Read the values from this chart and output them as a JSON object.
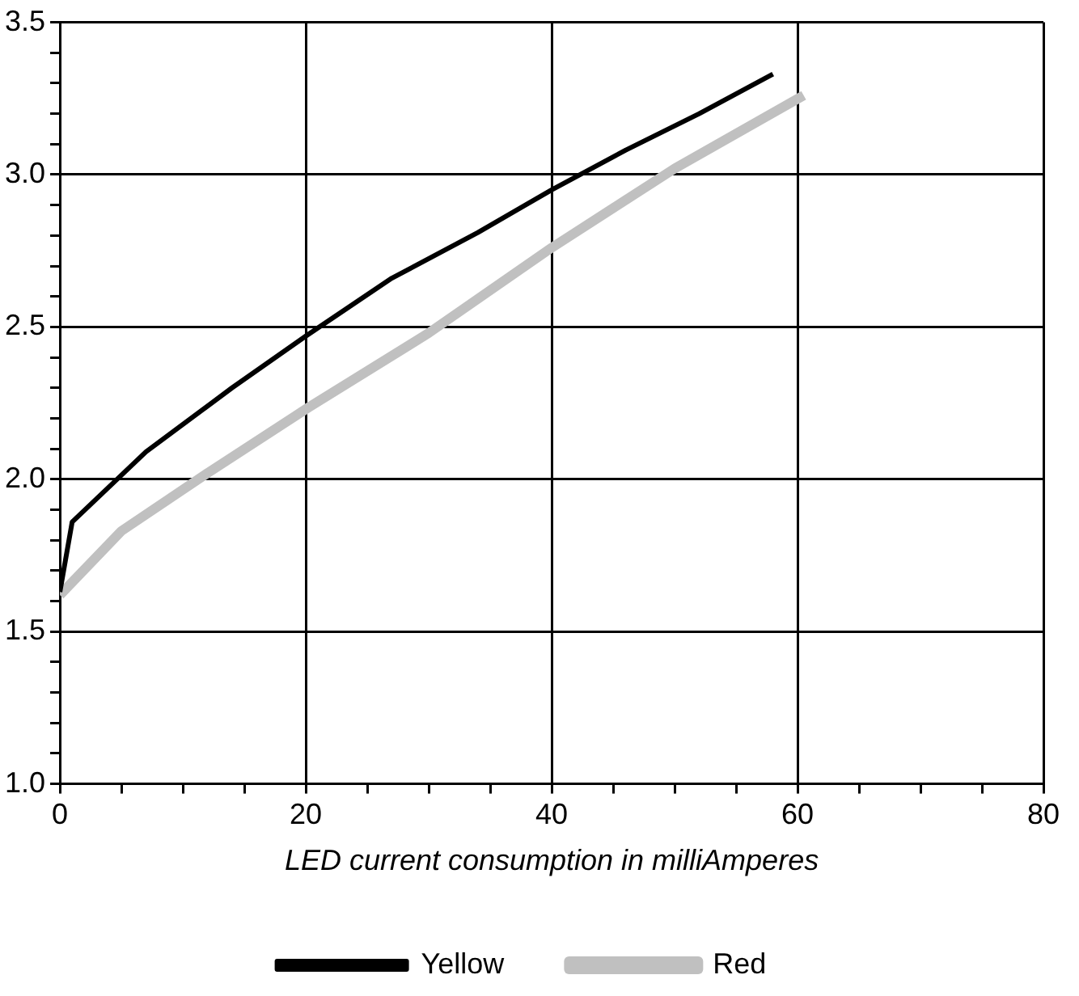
{
  "chart_data": {
    "type": "line",
    "xlabel": "LED current consumption in milliAmperes",
    "xlim": [
      0,
      80
    ],
    "xticks": [
      0,
      {
        "value": 5,
        "label": null
      },
      {
        "value": 10,
        "label": null
      },
      {
        "value": 15,
        "label": null
      },
      20,
      {
        "value": 25,
        "label": null
      },
      {
        "value": 30,
        "label": null
      },
      {
        "value": 35,
        "label": null
      },
      40,
      {
        "value": 45,
        "label": null
      },
      {
        "value": 50,
        "label": null
      },
      {
        "value": 55,
        "label": null
      },
      60,
      {
        "value": 65,
        "label": null
      },
      {
        "value": 70,
        "label": null
      },
      {
        "value": 75,
        "label": null
      },
      80
    ],
    "ylim": [
      1.0,
      3.5
    ],
    "yticks": [
      {
        "value": 1.0,
        "label": "1.0"
      },
      {
        "value": 1.1,
        "label": null
      },
      {
        "value": 1.2,
        "label": null
      },
      {
        "value": 1.3,
        "label": null
      },
      {
        "value": 1.4,
        "label": null
      },
      {
        "value": 1.5,
        "label": "1.5"
      },
      {
        "value": 1.6,
        "label": null
      },
      {
        "value": 1.7,
        "label": null
      },
      {
        "value": 1.8,
        "label": null
      },
      {
        "value": 1.9,
        "label": null
      },
      {
        "value": 2.0,
        "label": "2.0"
      },
      {
        "value": 2.1,
        "label": null
      },
      {
        "value": 2.2,
        "label": null
      },
      {
        "value": 2.3,
        "label": null
      },
      {
        "value": 2.4,
        "label": null
      },
      {
        "value": 2.5,
        "label": "2.5"
      },
      {
        "value": 2.6,
        "label": null
      },
      {
        "value": 2.7,
        "label": null
      },
      {
        "value": 2.8,
        "label": null
      },
      {
        "value": 2.9,
        "label": null
      },
      {
        "value": 3.0,
        "label": "3.0"
      },
      {
        "value": 3.1,
        "label": null
      },
      {
        "value": 3.2,
        "label": null
      },
      {
        "value": 3.3,
        "label": null
      },
      {
        "value": 3.4,
        "label": null
      },
      {
        "value": 3.5,
        "label": "3.5"
      }
    ],
    "grid": true,
    "legend": "bottom",
    "marker": "none",
    "line_style": "solid",
    "series": [
      {
        "name": "Yellow",
        "color": "#000000",
        "x": [
          0,
          1,
          7,
          14,
          20,
          27,
          34,
          40,
          46,
          52,
          58
        ],
        "values": [
          1.63,
          1.86,
          2.09,
          2.3,
          2.47,
          2.66,
          2.81,
          2.95,
          3.08,
          3.2,
          3.33
        ]
      },
      {
        "name": "Red",
        "color": "#c0c0c0",
        "x": [
          0,
          5,
          12,
          20,
          30,
          40,
          50,
          60.5
        ],
        "values": [
          1.62,
          1.83,
          2.02,
          2.23,
          2.48,
          2.76,
          3.02,
          3.26
        ]
      }
    ]
  }
}
